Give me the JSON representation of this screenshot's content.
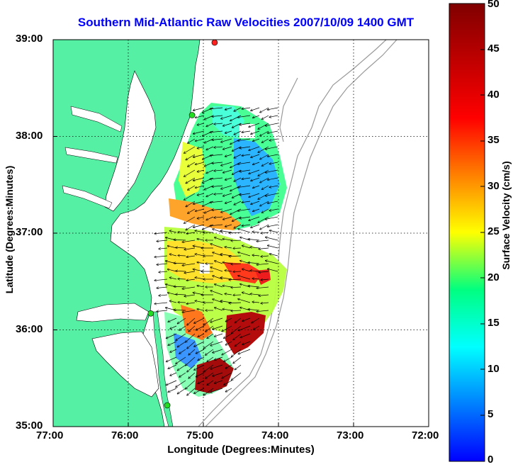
{
  "title": "Southern Mid-Atlantic Raw Velocities 2007/10/09 1400 GMT",
  "xlabel": "Longitude (Degrees:Minutes)",
  "ylabel": "Latitude (Degrees:Minutes)",
  "colorbar": {
    "label": "Surface Velocity (cm/s)",
    "range": [
      0,
      50
    ],
    "ticks": [
      "0",
      "5",
      "10",
      "15",
      "20",
      "25",
      "30",
      "35",
      "40",
      "45",
      "50"
    ],
    "colormap": "jet"
  },
  "axes": {
    "x_ticks": [
      "77:00",
      "76:00",
      "75:00",
      "74:00",
      "73:00",
      "72:00"
    ],
    "y_ticks": [
      "39:00",
      "38:00",
      "37:00",
      "36:00",
      "35:00"
    ],
    "xlim_deg_west": [
      77,
      72
    ],
    "ylim_deg_north": [
      35,
      39
    ],
    "grid": "dotted"
  },
  "colors": {
    "land": "#55f0a4",
    "water": "#ffffff",
    "title": "#0000ff",
    "bathymetry": "#9a9a9a",
    "station": "#22dd22",
    "station_alt": "#ff2020"
  },
  "stations_deg": [
    {
      "lon": -74.85,
      "lat": 38.97,
      "kind": "alt"
    },
    {
      "lon": -75.15,
      "lat": 38.22,
      "kind": "normal"
    },
    {
      "lon": -75.7,
      "lat": 36.17,
      "kind": "normal"
    },
    {
      "lon": -75.48,
      "lat": 35.22,
      "kind": "normal"
    }
  ]
}
